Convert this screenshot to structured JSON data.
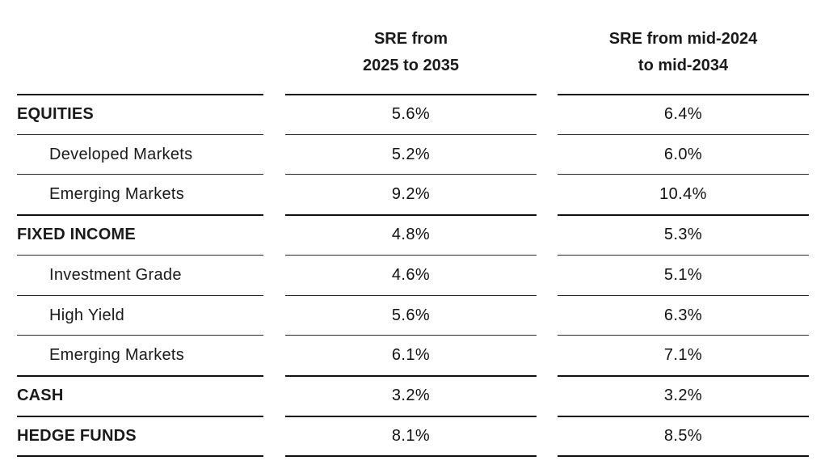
{
  "table": {
    "columns": [
      {
        "lines": [
          "SRE from",
          "2025 to 2035"
        ]
      },
      {
        "lines": [
          "SRE from mid-2024",
          "to mid-2034"
        ]
      }
    ],
    "rows": [
      {
        "label": "EQUITIES",
        "kind": "category",
        "v1": "5.6%",
        "v2": "6.4%"
      },
      {
        "label": "Developed Markets",
        "kind": "sub",
        "v1": "5.2%",
        "v2": "6.0%"
      },
      {
        "label": "Emerging Markets",
        "kind": "sub",
        "v1": "9.2%",
        "v2": "10.4%"
      },
      {
        "label": "FIXED INCOME",
        "kind": "category",
        "v1": "4.8%",
        "v2": "5.3%"
      },
      {
        "label": "Investment Grade",
        "kind": "sub",
        "v1": "4.6%",
        "v2": "5.1%"
      },
      {
        "label": "High Yield",
        "kind": "sub",
        "v1": "5.6%",
        "v2": "6.3%"
      },
      {
        "label": "Emerging Markets",
        "kind": "sub",
        "v1": "6.1%",
        "v2": "7.1%"
      },
      {
        "label": "CASH",
        "kind": "category",
        "v1": "3.2%",
        "v2": "3.2%"
      },
      {
        "label": "HEDGE FUNDS",
        "kind": "category",
        "v1": "8.1%",
        "v2": "8.5%"
      }
    ]
  }
}
